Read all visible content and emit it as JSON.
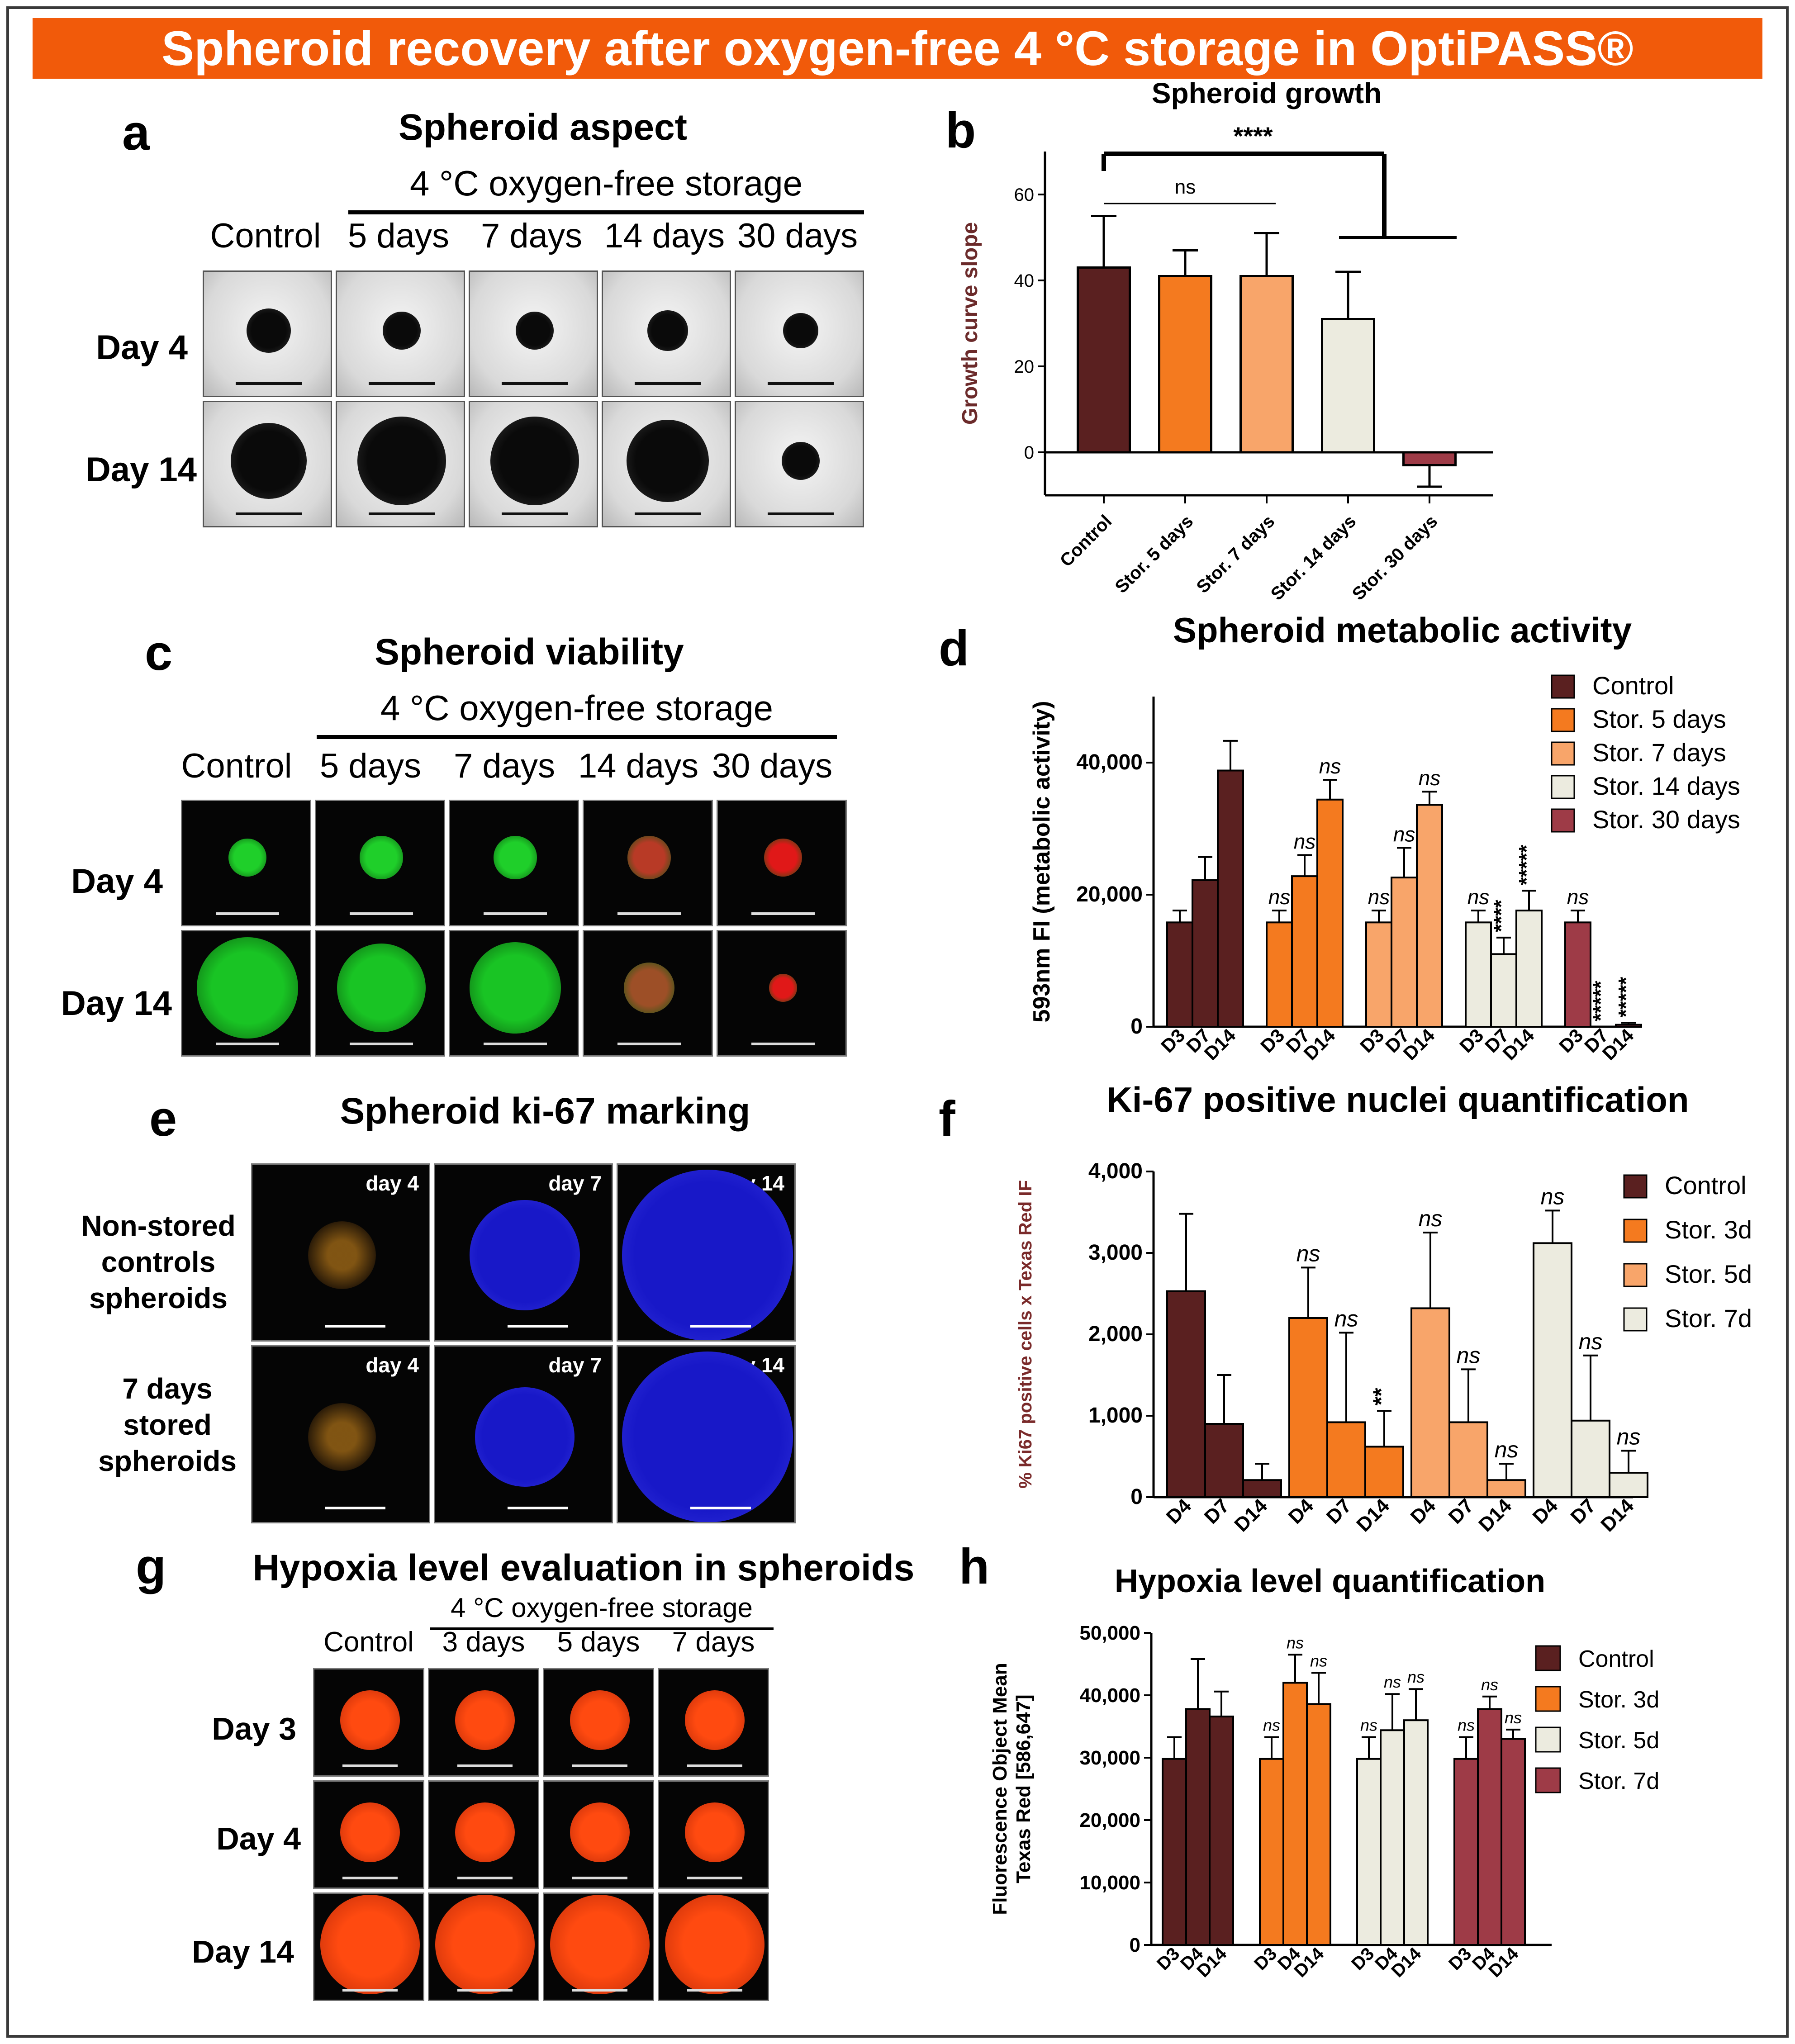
{
  "banner": "Spheroid recovery after oxygen-free 4 °C storage in OptiPASS®",
  "panels": {
    "a": {
      "letter": "a",
      "title": "Spheroid aspect",
      "storage_header": "4 °C oxygen-free storage",
      "columns": [
        "Control",
        "5 days",
        "7 days",
        "14 days",
        "30 days"
      ],
      "rows": [
        "Day 4",
        "Day 14"
      ]
    },
    "c": {
      "letter": "c",
      "title": "Spheroid viability",
      "storage_header": "4 °C oxygen-free storage",
      "columns": [
        "Control",
        "5 days",
        "7 days",
        "14 days",
        "30 days"
      ],
      "rows": [
        "Day 4",
        "Day 14"
      ]
    },
    "e": {
      "letter": "e",
      "title": "Spheroid ki-67 marking",
      "rows": [
        "Non-stored controls spheroids",
        "7 days stored spheroids"
      ],
      "tags": [
        "day 4",
        "day 7",
        "day 14"
      ]
    },
    "g": {
      "letter": "g",
      "title": "Hypoxia level evaluation in spheroids",
      "storage_header": "4 °C oxygen-free storage",
      "columns": [
        "Control",
        "3 days",
        "5 days",
        "7 days"
      ],
      "rows": [
        "Day 3",
        "Day 4",
        "Day 14"
      ]
    },
    "b": {
      "letter": "b"
    },
    "d": {
      "letter": "d"
    },
    "f": {
      "letter": "f"
    },
    "h": {
      "letter": "h"
    }
  },
  "chart_data": [
    {
      "id": "b",
      "type": "bar",
      "title": "Spheroid growth",
      "ylabel": "Growth curve slope",
      "ylim": [
        -10,
        70
      ],
      "yticks": [
        0,
        20,
        40,
        60
      ],
      "categories": [
        "Control",
        "Stor. 5 days",
        "Stor. 7 days",
        "Stor. 14 days",
        "Stor. 30 days"
      ],
      "values": [
        43,
        41,
        41,
        31,
        -3
      ],
      "errors": [
        12,
        6,
        10,
        11,
        5
      ],
      "colors": [
        "#5a2020",
        "#f47a1f",
        "#f8a56a",
        "#ecebdf",
        "#9e3b47"
      ],
      "annotations": [
        {
          "text": "ns",
          "from": 0,
          "to": 2
        },
        {
          "text": "****",
          "from": 0,
          "to": "3-4"
        }
      ]
    },
    {
      "id": "d",
      "type": "bar",
      "title": "Spheroid metabolic activity",
      "ylabel": "593nm FI (metabolic activity)",
      "ylim": [
        0,
        50000
      ],
      "yticks": [
        0,
        20000,
        40000
      ],
      "ytick_labels": [
        "0",
        "20,000",
        "40,000"
      ],
      "categories": [
        "D3",
        "D7",
        "D14"
      ],
      "series": [
        {
          "name": "Control",
          "color": "#5a2020",
          "values": [
            15800,
            22200,
            38800
          ],
          "errors": [
            1800,
            3500,
            4500
          ],
          "marks": [
            "",
            "",
            ""
          ]
        },
        {
          "name": "Stor. 5 days",
          "color": "#f47a1f",
          "values": [
            15800,
            22800,
            34400
          ],
          "errors": [
            1800,
            3200,
            3000
          ],
          "marks": [
            "ns",
            "ns",
            "ns"
          ]
        },
        {
          "name": "Stor. 7 days",
          "color": "#f8a56a",
          "values": [
            15800,
            22600,
            33600
          ],
          "errors": [
            1800,
            4500,
            2000
          ],
          "marks": [
            "ns",
            "ns",
            "ns"
          ]
        },
        {
          "name": "Stor. 14 days",
          "color": "#ecebdf",
          "values": [
            15800,
            11000,
            17600
          ],
          "errors": [
            1800,
            2500,
            3000
          ],
          "marks": [
            "ns",
            "****",
            "*****"
          ]
        },
        {
          "name": "Stor. 30 days",
          "color": "#9e3b47",
          "values": [
            15800,
            0,
            300
          ],
          "errors": [
            1800,
            0,
            300
          ],
          "marks": [
            "ns",
            "*****",
            "*****"
          ]
        }
      ]
    },
    {
      "id": "f",
      "type": "bar",
      "title": "Ki-67 positive nuclei quantification",
      "ylabel": "% Ki67 positive cells x Texas Red IF",
      "ylim": [
        0,
        4000
      ],
      "yticks": [
        0,
        1000,
        2000,
        3000,
        4000
      ],
      "ytick_labels": [
        "0",
        "1,000",
        "2,000",
        "3,000",
        "4,000"
      ],
      "categories": [
        "D4",
        "D7",
        "D14"
      ],
      "series": [
        {
          "name": "Control",
          "color": "#5a2020",
          "values": [
            2530,
            900,
            210
          ],
          "errors": [
            950,
            600,
            200
          ],
          "marks": [
            "",
            "",
            ""
          ]
        },
        {
          "name": "Stor. 3d",
          "color": "#f47a1f",
          "values": [
            2200,
            920,
            620
          ],
          "errors": [
            620,
            1100,
            440
          ],
          "marks": [
            "ns",
            "ns",
            "**"
          ]
        },
        {
          "name": "Stor. 5d",
          "color": "#f8a56a",
          "values": [
            2320,
            920,
            210
          ],
          "errors": [
            930,
            650,
            200
          ],
          "marks": [
            "ns",
            "ns",
            "ns"
          ]
        },
        {
          "name": "Stor. 7d",
          "color": "#ecebdf",
          "values": [
            3120,
            940,
            300
          ],
          "errors": [
            400,
            800,
            270
          ],
          "marks": [
            "ns",
            "ns",
            "ns"
          ]
        }
      ]
    },
    {
      "id": "h",
      "type": "bar",
      "title": "Hypoxia level quantification",
      "ylabel": "Fluorescence Object Mean Texas Red [586,647]",
      "ylabel_lines": [
        "Fluorescence Object Mean",
        "Texas Red [586,647]"
      ],
      "ylim": [
        0,
        50000
      ],
      "yticks": [
        0,
        10000,
        20000,
        30000,
        40000,
        50000
      ],
      "ytick_labels": [
        "0",
        "10,000",
        "20,000",
        "30,000",
        "40,000",
        "50,000"
      ],
      "categories": [
        "D3",
        "D4",
        "D14"
      ],
      "series": [
        {
          "name": "Control",
          "color": "#5a2020",
          "values": [
            29800,
            37800,
            36600
          ],
          "errors": [
            3500,
            8000,
            4000
          ],
          "marks": [
            "",
            "",
            ""
          ]
        },
        {
          "name": "Stor. 3d",
          "color": "#f47a1f",
          "values": [
            29800,
            42000,
            38600
          ],
          "errors": [
            3500,
            4500,
            5000
          ],
          "marks": [
            "ns",
            "ns",
            "ns"
          ]
        },
        {
          "name": "Stor. 5d",
          "color": "#ecebdf",
          "values": [
            29800,
            34400,
            36000
          ],
          "errors": [
            3500,
            5800,
            5000
          ],
          "marks": [
            "ns",
            "ns",
            "ns"
          ]
        },
        {
          "name": "Stor. 7d",
          "color": "#9e3b47",
          "values": [
            29800,
            37800,
            33000
          ],
          "errors": [
            3500,
            2000,
            1500
          ],
          "marks": [
            "ns",
            "ns",
            "ns"
          ]
        }
      ]
    }
  ]
}
